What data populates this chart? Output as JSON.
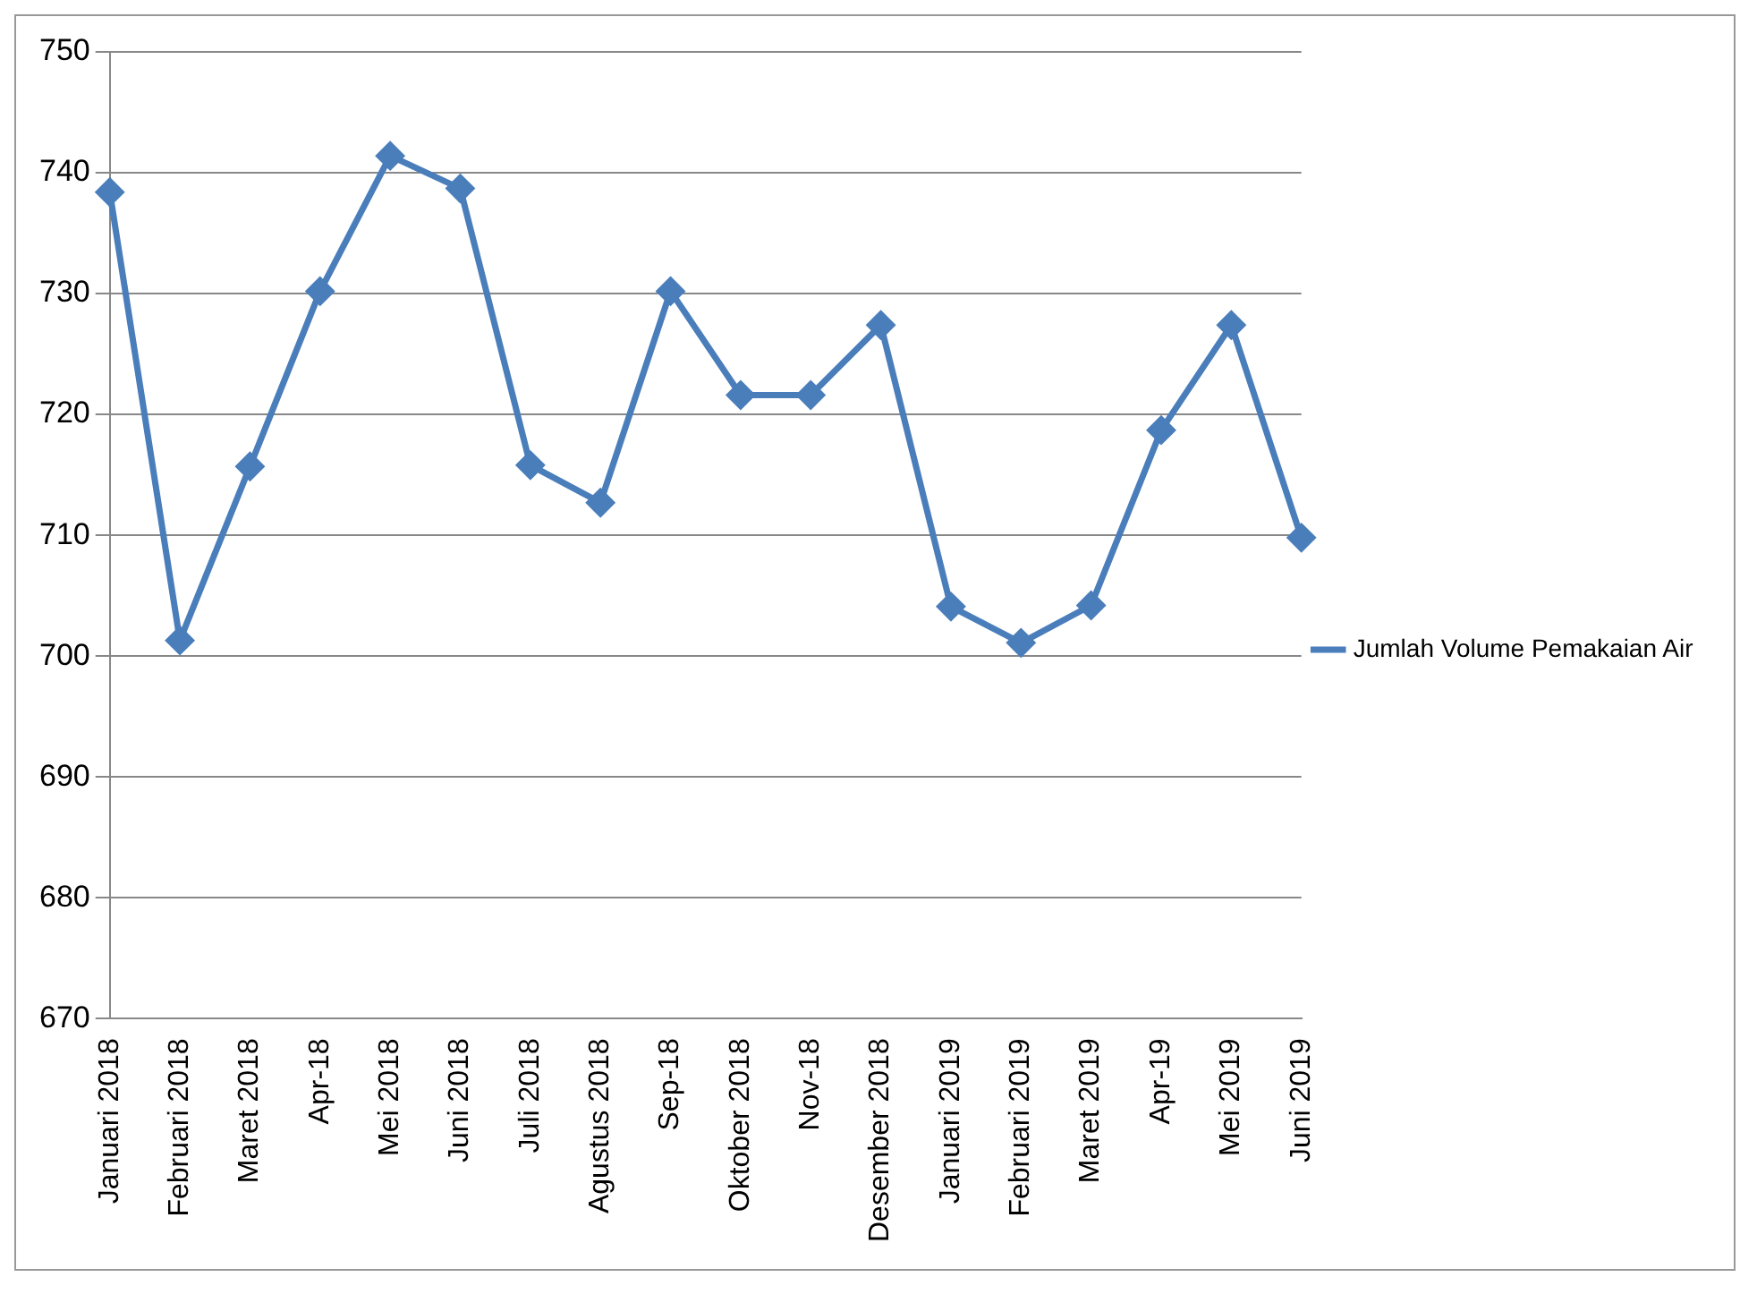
{
  "chart_data": {
    "type": "line",
    "categories": [
      "Januari 2018",
      "Februari 2018",
      "Maret 2018",
      "Apr-18",
      "Mei 2018",
      "Juni 2018",
      "Juli 2018",
      "Agustus 2018",
      "Sep-18",
      "Oktober 2018",
      "Nov-18",
      "Desember 2018",
      "Januari 2019",
      "Februari 2019",
      "Maret 2019",
      "Apr-19",
      "Mei 2019",
      "Juni 2019"
    ],
    "series": [
      {
        "name": "Jumlah Volume Pemakaian Air",
        "color": "#4a7ebb",
        "values": [
          738.4,
          701.3,
          715.7,
          730.2,
          741.4,
          738.7,
          715.8,
          712.7,
          730.2,
          721.6,
          721.6,
          727.4,
          704.1,
          701.1,
          704.2,
          718.7,
          727.4,
          709.8
        ]
      }
    ],
    "ylim": [
      670,
      750
    ],
    "yticks": [
      670,
      680,
      690,
      700,
      710,
      720,
      730,
      740,
      750
    ],
    "grid": "y",
    "legend": "right",
    "marker": "diamond",
    "line_style": "solid"
  }
}
